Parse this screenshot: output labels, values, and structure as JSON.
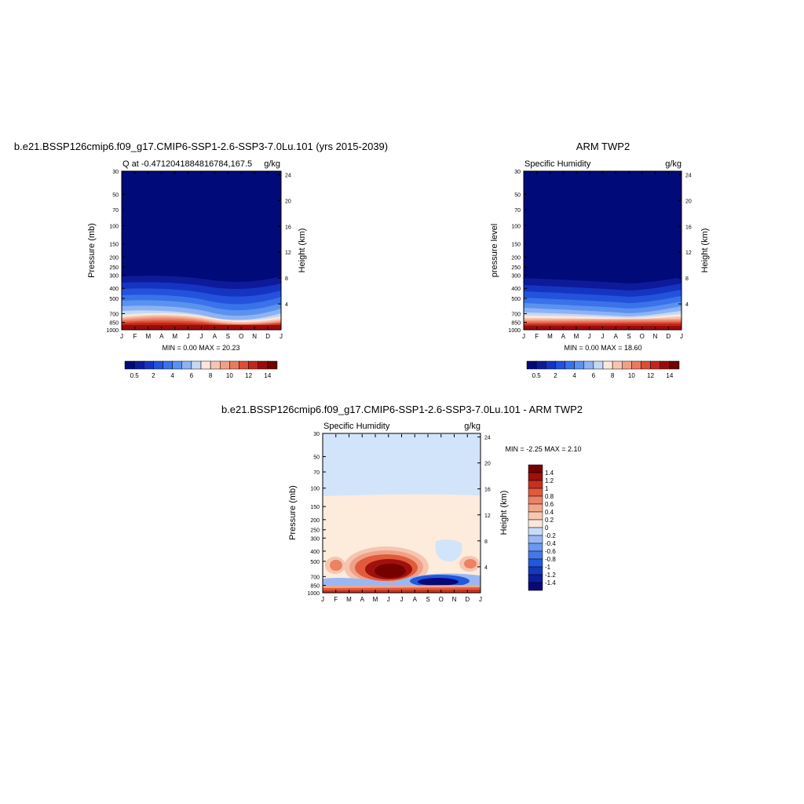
{
  "chart_data": [
    {
      "type": "heatmap",
      "title": "b.e21.BSSP126cmip6.f09_g17.CMIP6-SSP1-2.6-SSP3-7.0Lu.101 (yrs 2015-2039)",
      "subtitle_left": "Q at -0.4712041884816784,167.5",
      "subtitle_right": "g/kg",
      "ylabel": "Pressure (mb)",
      "ylabel_right": "Height (km)",
      "xticks": [
        "J",
        "F",
        "M",
        "A",
        "M",
        "J",
        "J",
        "A",
        "S",
        "O",
        "N",
        "D",
        "J"
      ],
      "yticks": [
        "30",
        "50",
        "70",
        "100",
        "150",
        "200",
        "250",
        "300",
        "400",
        "500",
        "700",
        "850",
        "1000"
      ],
      "yticks_right": [
        "24",
        "20",
        "16",
        "12",
        "8",
        "4"
      ],
      "ylim": [
        30,
        1000
      ],
      "stats": "MIN =   0.00 MAX =  20.23",
      "colorbar_ticks": [
        "0.5",
        "2",
        "4",
        "6",
        "8",
        "10",
        "12",
        "14"
      ],
      "min": 0.0,
      "max": 20.23
    },
    {
      "type": "heatmap",
      "title": "ARM TWP2",
      "subtitle_left": "Specific Humidity",
      "subtitle_right": "g/kg",
      "ylabel": "pressure level",
      "ylabel_right": "Height (km)",
      "xticks": [
        "J",
        "F",
        "M",
        "A",
        "M",
        "J",
        "J",
        "A",
        "S",
        "O",
        "N",
        "D",
        "J"
      ],
      "yticks": [
        "30",
        "50",
        "70",
        "100",
        "150",
        "200",
        "250",
        "300",
        "400",
        "500",
        "700",
        "850",
        "1000"
      ],
      "yticks_right": [
        "24",
        "20",
        "16",
        "12",
        "8",
        "4"
      ],
      "ylim": [
        30,
        1000
      ],
      "stats": "MIN =   0.00 MAX =  18.60",
      "colorbar_ticks": [
        "0.5",
        "2",
        "4",
        "6",
        "8",
        "10",
        "12",
        "14"
      ],
      "min": 0.0,
      "max": 18.6
    },
    {
      "type": "heatmap",
      "title": "b.e21.BSSP126cmip6.f09_g17.CMIP6-SSP1-2.6-SSP3-7.0Lu.101 - ARM TWP2",
      "subtitle_left": "Specific Humidity",
      "subtitle_right": "g/kg",
      "ylabel": "Pressure (mb)",
      "ylabel_right": "Height (km)",
      "xticks": [
        "J",
        "F",
        "M",
        "A",
        "M",
        "J",
        "J",
        "A",
        "S",
        "O",
        "N",
        "D",
        "J"
      ],
      "yticks": [
        "30",
        "50",
        "70",
        "100",
        "150",
        "200",
        "250",
        "300",
        "400",
        "500",
        "700",
        "850",
        "1000"
      ],
      "yticks_right": [
        "24",
        "20",
        "16",
        "12",
        "8",
        "4"
      ],
      "ylim": [
        30,
        1000
      ],
      "stats": "MIN =  -2.25 MAX =   2.10",
      "colorbar_ticks": [
        "1.4",
        "1.2",
        "1",
        "0.8",
        "0.6",
        "0.4",
        "0.2",
        "0",
        "-0.2",
        "-0.4",
        "-0.6",
        "-0.8",
        "-1",
        "-1.2",
        "-1.4"
      ],
      "min": -2.25,
      "max": 2.1
    }
  ],
  "colors": {
    "seq_colormap": [
      "#000a78",
      "#0d1a9a",
      "#1634c2",
      "#2352dc",
      "#3a72ea",
      "#5a92f0",
      "#8eb2f2",
      "#c4d8f6",
      "#fbe6dc",
      "#f6c5b0",
      "#f1a088",
      "#ea7a5e",
      "#dc4e36",
      "#c0281c",
      "#9a0c0c",
      "#700000"
    ],
    "diff_colormap": [
      "#08087a",
      "#0b1e9c",
      "#1438c0",
      "#2358dc",
      "#4278ea",
      "#6a98f0",
      "#98b8f4",
      "#c6dcf8",
      "#fbe7da",
      "#f7c8b0",
      "#f2a688",
      "#ec8262",
      "#e05a3c",
      "#c8301e",
      "#a0100c",
      "#740000"
    ]
  }
}
